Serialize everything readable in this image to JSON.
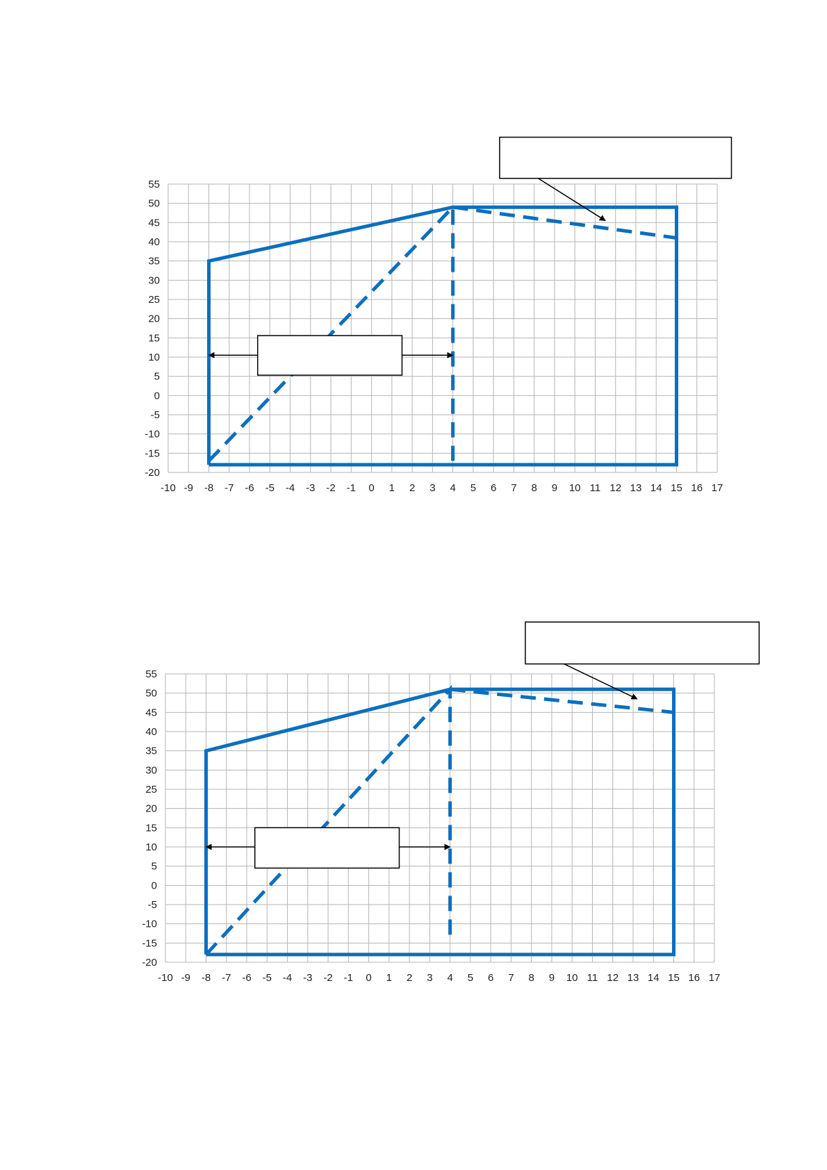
{
  "colors": {
    "series": "#0a6fbf",
    "grid": "#b5b5b5",
    "axis_text": "#222222",
    "callout_border": "#000000",
    "arrow": "#000000"
  },
  "chart_data": [
    {
      "type": "line",
      "title": "",
      "xlabel": "",
      "ylabel": "",
      "xlim": [
        -10,
        17
      ],
      "ylim": [
        -20,
        55
      ],
      "x_ticks": [
        "-10",
        "-9",
        "-8",
        "-7",
        "-6",
        "-5",
        "-4",
        "-3",
        "-2",
        "-1",
        "0",
        "1",
        "2",
        "3",
        "4",
        "5",
        "6",
        "7",
        "8",
        "9",
        "10",
        "11",
        "12",
        "13",
        "14",
        "15",
        "16",
        "17"
      ],
      "y_ticks": [
        "55",
        "50",
        "45",
        "40",
        "35",
        "30",
        "25",
        "20",
        "15",
        "10",
        "5",
        "0",
        "-5",
        "-10",
        "-15",
        "-20"
      ],
      "grid": true,
      "legend": "none",
      "series": [
        {
          "style": "solid",
          "points": [
            [
              -8,
              -18
            ],
            [
              -8,
              35
            ],
            [
              4,
              49
            ],
            [
              15,
              49
            ],
            [
              15,
              -18
            ],
            [
              -8,
              -18
            ]
          ]
        },
        {
          "style": "dashed",
          "points": [
            [
              -8,
              -17
            ],
            [
              4,
              49
            ],
            [
              4,
              -17
            ]
          ]
        },
        {
          "style": "dashed",
          "points": [
            [
              4,
              49
            ],
            [
              15,
              41
            ]
          ]
        }
      ],
      "annotations": [
        {
          "text": "",
          "box_x": [
            6.3,
            17.7
          ],
          "box_y": [
            56.5,
            67.2
          ],
          "arrow_from": [
            8.2,
            56.5
          ],
          "arrow_to": [
            11.5,
            45.5
          ]
        },
        {
          "text": "",
          "box_x": [
            -5.6,
            1.5
          ],
          "box_y": [
            5.3,
            15.6
          ],
          "arrows": [
            {
              "from": [
                -5.6,
                10.5
              ],
              "to": [
                -8,
                10.5
              ]
            },
            {
              "from": [
                1.5,
                10.5
              ],
              "to": [
                4,
                10.5
              ]
            }
          ]
        }
      ]
    },
    {
      "type": "line",
      "title": "",
      "xlabel": "",
      "ylabel": "",
      "xlim": [
        -10,
        17
      ],
      "ylim": [
        -20,
        55
      ],
      "x_ticks": [
        "-10",
        "-9",
        "-8",
        "-7",
        "-6",
        "-5",
        "-4",
        "-3",
        "-2",
        "-1",
        "0",
        "1",
        "2",
        "3",
        "4",
        "5",
        "6",
        "7",
        "8",
        "9",
        "10",
        "11",
        "12",
        "13",
        "14",
        "15",
        "16",
        "17"
      ],
      "y_ticks": [
        "55",
        "50",
        "45",
        "40",
        "35",
        "30",
        "25",
        "20",
        "15",
        "10",
        "5",
        "0",
        "-5",
        "-10",
        "-15",
        "-20"
      ],
      "grid": true,
      "legend": "none",
      "series": [
        {
          "style": "solid",
          "points": [
            [
              -8,
              -18
            ],
            [
              -8,
              35
            ],
            [
              4,
              51
            ],
            [
              15,
              51
            ],
            [
              15,
              -18
            ],
            [
              -8,
              -18
            ]
          ]
        },
        {
          "style": "dashed",
          "points": [
            [
              -8,
              -18
            ],
            [
              4,
              51
            ],
            [
              4,
              -15
            ]
          ]
        },
        {
          "style": "dashed",
          "points": [
            [
              4,
              51
            ],
            [
              15,
              45
            ]
          ]
        }
      ],
      "annotations": [
        {
          "text": "",
          "box_x": [
            7.7,
            19.2
          ],
          "box_y": [
            57.6,
            68.5
          ],
          "arrow_from": [
            9.6,
            57.6
          ],
          "arrow_to": [
            13.2,
            48.5
          ]
        },
        {
          "text": "",
          "box_x": [
            -5.6,
            1.5
          ],
          "box_y": [
            4.5,
            15
          ],
          "arrows": [
            {
              "from": [
                -5.6,
                10
              ],
              "to": [
                -8,
                10
              ]
            },
            {
              "from": [
                1.5,
                10
              ],
              "to": [
                4,
                10
              ]
            }
          ]
        }
      ]
    }
  ]
}
